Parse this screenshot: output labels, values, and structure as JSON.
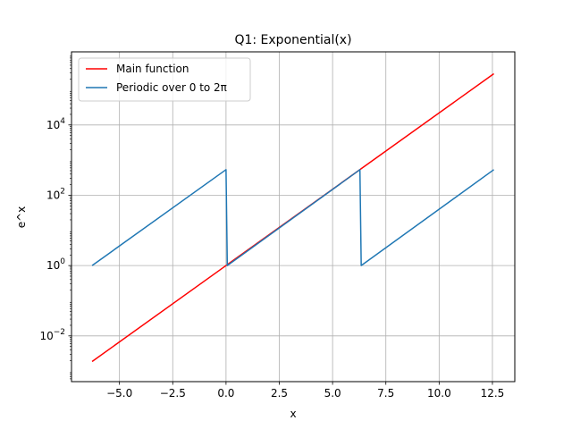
{
  "chart_data": {
    "type": "line",
    "title": "Q1: Exponential(x)",
    "xlabel": "x",
    "ylabel": "e^x",
    "xscale": "linear",
    "yscale": "log",
    "xlim": [
      -7.25,
      13.55
    ],
    "ylim": [
      0.0005,
      1200000
    ],
    "xticks": [
      -5.0,
      -2.5,
      0.0,
      2.5,
      5.0,
      7.5,
      10.0,
      12.5
    ],
    "xtick_labels": [
      "−5.0",
      "−2.5",
      "0.0",
      "2.5",
      "5.0",
      "7.5",
      "10.0",
      "12.5"
    ],
    "yticks": [
      {
        "value": 0.01,
        "base": "10",
        "exp": "−2"
      },
      {
        "value": 1,
        "base": "10",
        "exp": "0"
      },
      {
        "value": 100,
        "base": "10",
        "exp": "2"
      },
      {
        "value": 10000,
        "base": "10",
        "exp": "4"
      }
    ],
    "grid": true,
    "legend_position": "top-left",
    "series": [
      {
        "name": "Main function",
        "color": "#ff0000",
        "x": [
          -6.2832,
          12.5664
        ],
        "y": [
          0.001867,
          286751
        ]
      },
      {
        "name": "Periodic over 0 to 2π",
        "color": "#1f77b4",
        "x": [
          -6.2832,
          0.0,
          0.06,
          6.2832,
          6.3432,
          12.5664
        ],
        "y": [
          1.0,
          535.49,
          1.0,
          535.49,
          1.0,
          535.49
        ]
      }
    ]
  }
}
